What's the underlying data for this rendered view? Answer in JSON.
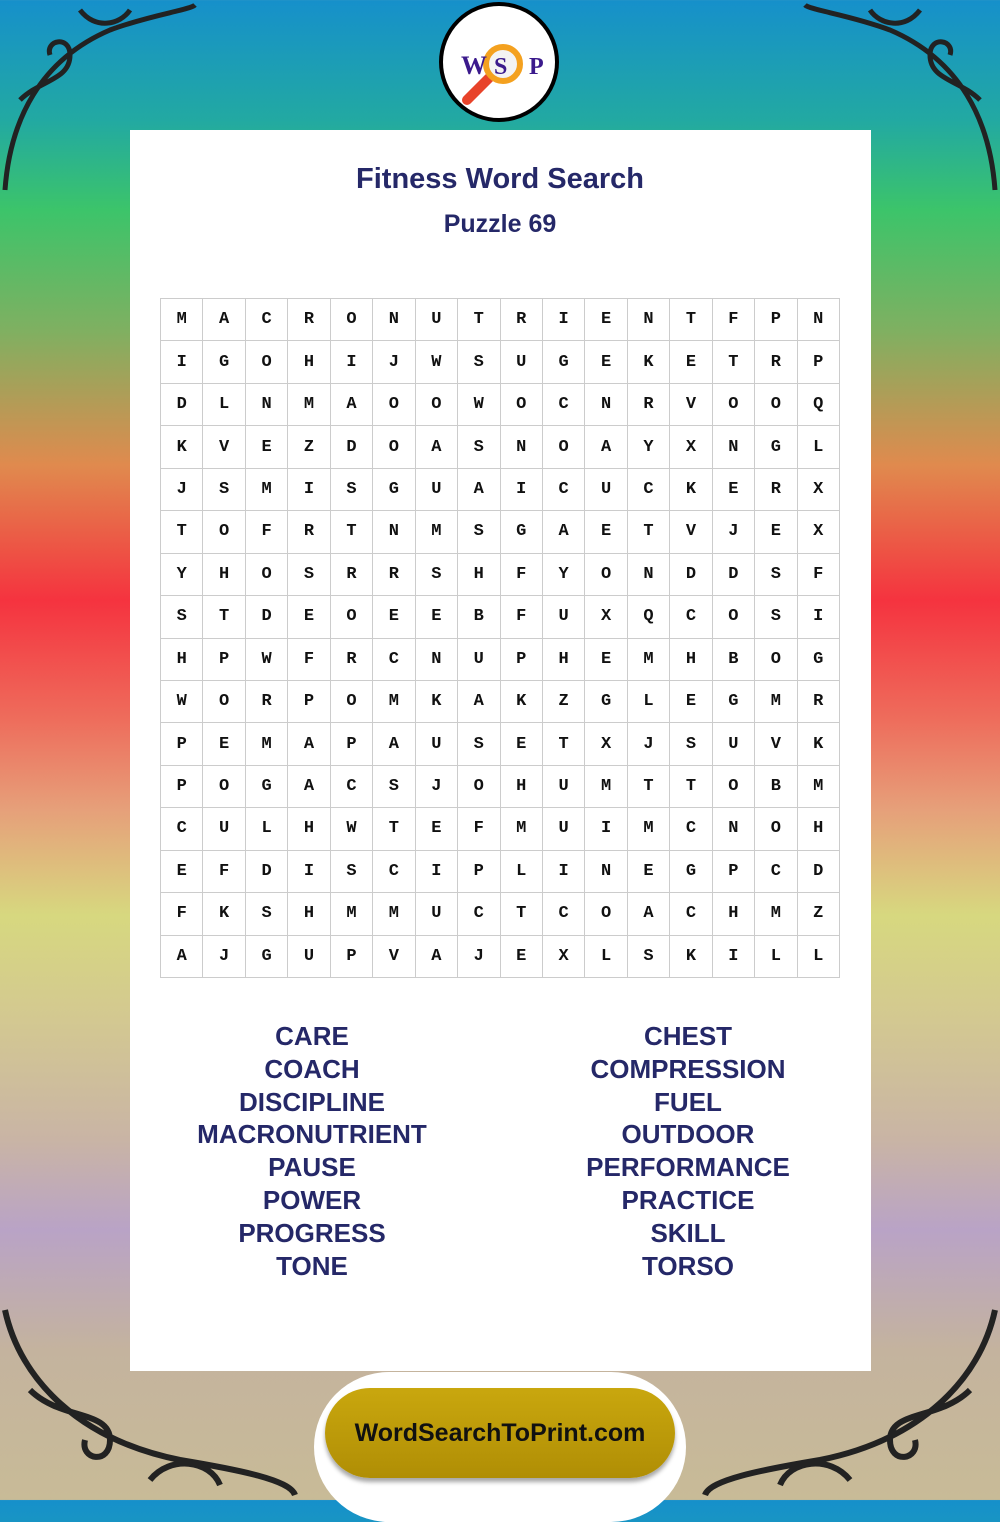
{
  "logo": {
    "letters": [
      "W",
      "S",
      "P"
    ],
    "text": "WSP"
  },
  "header": {
    "title": "Fitness Word Search",
    "subtitle": "Puzzle 69"
  },
  "grid": [
    "MACRONUTRIENTFPN",
    "IGOHIJWSUGEKETRP",
    "DLNMAOOWOCNRVOOQ",
    "KVEZDOASNOAYXNGL",
    "JSMISGUAICUCKERX",
    "TOFRTNMSGAETVJEX",
    "YHOSRRSHFYONDDSF",
    "STDEOEEBFUXQCOSI",
    "HPWFRCNUPHEMHBOG",
    "WORPOMKAKZGLEGMR",
    "PEMAPAUSETXJSUVK",
    "POGACSJOHUMTTOBM",
    "CULHWTEFMUIMCNOH",
    "EFDISCIPLINEGPCD",
    "FKSHMMUCTCOACHMZ",
    "AJGUPVAJEXLSKILL"
  ],
  "words_left": [
    "CARE",
    "COACH",
    "DISCIPLINE",
    "MACRONUTRIENT",
    "PAUSE",
    "POWER",
    "PROGRESS",
    "TONE"
  ],
  "words_right": [
    "CHEST",
    "COMPRESSION",
    "FUEL",
    "OUTDOOR",
    "PERFORMANCE",
    "PRACTICE",
    "SKILL",
    "TORSO"
  ],
  "footer": {
    "site": "WordSearchToPrint.com"
  },
  "colors": {
    "title": "#252868",
    "footer_button": "#b8960a",
    "logo_letters": "#3b1a8c"
  }
}
